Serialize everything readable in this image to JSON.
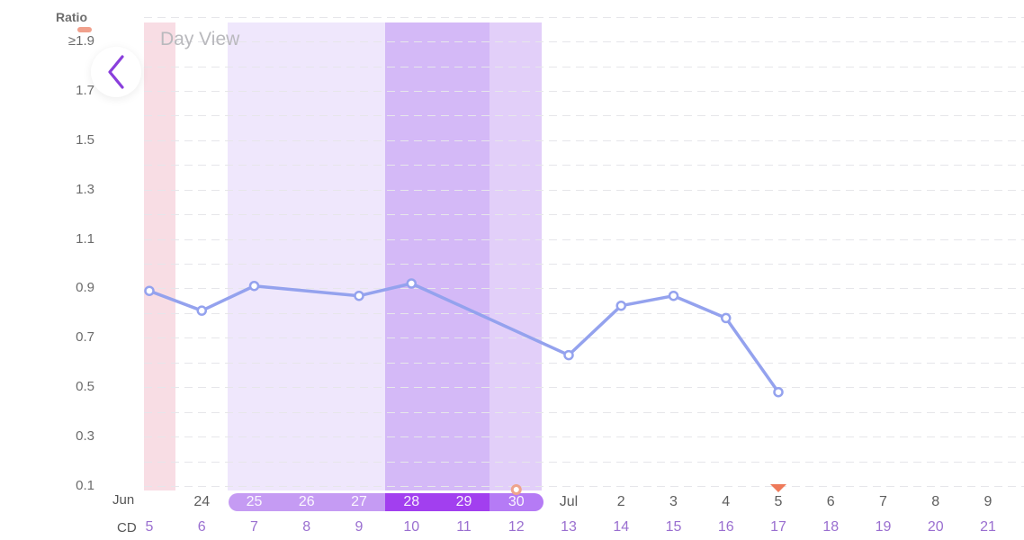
{
  "header": {
    "y_axis_title": "Ratio",
    "view_label": "Day View",
    "back_button_icon": "chevron-left-icon"
  },
  "colors": {
    "line": "#94a2ee",
    "pink_band": "#f8dde4",
    "light_purple_band": "#efe7fc",
    "dark_purple_band": "#d4b9f7",
    "medium_purple_band": "#e2cff9",
    "pill_light": "#c59bf3",
    "pill_dark": "#a23fef",
    "pill_medium": "#b57bf5",
    "marker_orange": "#ee7a5a",
    "cd_text": "#9a6fd0",
    "chevron": "#8a3fdc"
  },
  "y_axis": {
    "ticks": [
      {
        "label": "≥1.9",
        "value": 1.9
      },
      {
        "label": "1.7",
        "value": 1.7
      },
      {
        "label": "1.5",
        "value": 1.5
      },
      {
        "label": "1.3",
        "value": 1.3
      },
      {
        "label": "1.1",
        "value": 1.1
      },
      {
        "label": "0.9",
        "value": 0.9
      },
      {
        "label": "0.7",
        "value": 0.7
      },
      {
        "label": "0.5",
        "value": 0.5
      },
      {
        "label": "0.3",
        "value": 0.3
      },
      {
        "label": "0.1",
        "value": 0.1
      }
    ]
  },
  "x_axis": {
    "month_label_start": "Jun",
    "cd_label": "CD",
    "dates": [
      "",
      "24",
      "25",
      "26",
      "27",
      "28",
      "29",
      "30",
      "Jul",
      "2",
      "3",
      "4",
      "5",
      "6",
      "7",
      "8",
      "9"
    ],
    "cycle_days": [
      "5",
      "6",
      "7",
      "8",
      "9",
      "10",
      "11",
      "12",
      "13",
      "14",
      "15",
      "16",
      "17",
      "18",
      "19",
      "20",
      "21"
    ]
  },
  "chart_data": {
    "type": "line",
    "title": "Day View",
    "ylabel": "Ratio",
    "xlabel": "",
    "ylim": [
      0.1,
      2.0
    ],
    "grid": true,
    "x": [
      "Jun 23",
      "Jun 24",
      "Jun 25",
      "Jun 26",
      "Jun 27",
      "Jun 28",
      "Jun 29",
      "Jun 30",
      "Jul 1",
      "Jul 2",
      "Jul 3",
      "Jul 4",
      "Jul 5",
      "Jul 6",
      "Jul 7",
      "Jul 8",
      "Jul 9"
    ],
    "cycle_days": [
      5,
      6,
      7,
      8,
      9,
      10,
      11,
      12,
      13,
      14,
      15,
      16,
      17,
      18,
      19,
      20,
      21
    ],
    "series": [
      {
        "name": "Ratio",
        "points": [
          {
            "x": "Jun 23",
            "cd": 5,
            "y": 0.89
          },
          {
            "x": "Jun 24",
            "cd": 6,
            "y": 0.81
          },
          {
            "x": "Jun 25",
            "cd": 7,
            "y": 0.91
          },
          {
            "x": "Jun 27",
            "cd": 9,
            "y": 0.87
          },
          {
            "x": "Jun 28",
            "cd": 10,
            "y": 0.92
          },
          {
            "x": "Jul 1",
            "cd": 13,
            "y": 0.63
          },
          {
            "x": "Jul 2",
            "cd": 14,
            "y": 0.83
          },
          {
            "x": "Jul 3",
            "cd": 15,
            "y": 0.87
          },
          {
            "x": "Jul 4",
            "cd": 16,
            "y": 0.78
          },
          {
            "x": "Jul 5",
            "cd": 17,
            "y": 0.48
          }
        ]
      }
    ],
    "bands": [
      {
        "name": "period",
        "from_cd": 5,
        "to_cd": 5,
        "color": "#f8dde4"
      },
      {
        "name": "fertile-window",
        "from_cd": 7,
        "to_cd": 9,
        "color": "#efe7fc"
      },
      {
        "name": "peak-fertility",
        "from_cd": 10,
        "to_cd": 11,
        "color": "#d4b9f7"
      },
      {
        "name": "fertile-late",
        "from_cd": 12,
        "to_cd": 12,
        "color": "#e2cff9"
      }
    ],
    "annotations": [
      {
        "type": "ovulation-dot",
        "x": "Jun 30",
        "cd": 12
      },
      {
        "type": "today-triangle",
        "x": "Jul 5",
        "cd": 17
      }
    ]
  }
}
